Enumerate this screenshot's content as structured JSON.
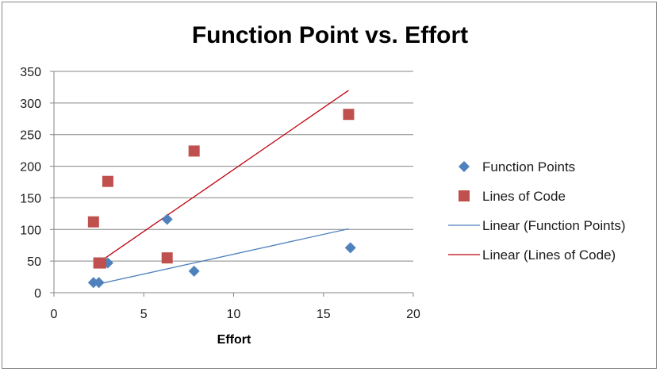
{
  "chart_data": {
    "type": "scatter",
    "title": "Function Point vs. Effort",
    "xlabel": "Effort",
    "ylabel": "",
    "xlim": [
      0,
      20
    ],
    "ylim": [
      0,
      350
    ],
    "x_ticks": [
      0,
      5,
      10,
      15,
      20
    ],
    "y_ticks": [
      0,
      50,
      100,
      150,
      200,
      250,
      300,
      350
    ],
    "grid": "horizontal",
    "legend_position": "right",
    "series": [
      {
        "name": "Function Points",
        "marker": "diamond",
        "color": "#4f81bd",
        "points": [
          [
            2.2,
            16
          ],
          [
            2.5,
            16
          ],
          [
            3.0,
            47
          ],
          [
            6.3,
            116
          ],
          [
            7.8,
            34
          ],
          [
            16.5,
            71
          ]
        ]
      },
      {
        "name": "Lines of Code",
        "marker": "square",
        "color": "#c0504d",
        "points": [
          [
            2.2,
            112
          ],
          [
            2.5,
            47
          ],
          [
            2.6,
            47
          ],
          [
            3.0,
            176
          ],
          [
            6.3,
            55
          ],
          [
            7.8,
            224
          ],
          [
            16.4,
            282
          ]
        ]
      }
    ],
    "trendlines": [
      {
        "name": "Linear (Function Points)",
        "color": "#4f81bd",
        "points": [
          [
            2.2,
            12
          ],
          [
            16.4,
            101
          ]
        ]
      },
      {
        "name": "Linear (Lines of Code)",
        "color": "#c0000e",
        "points": [
          [
            2.2,
            42
          ],
          [
            16.4,
            320
          ]
        ]
      }
    ]
  }
}
